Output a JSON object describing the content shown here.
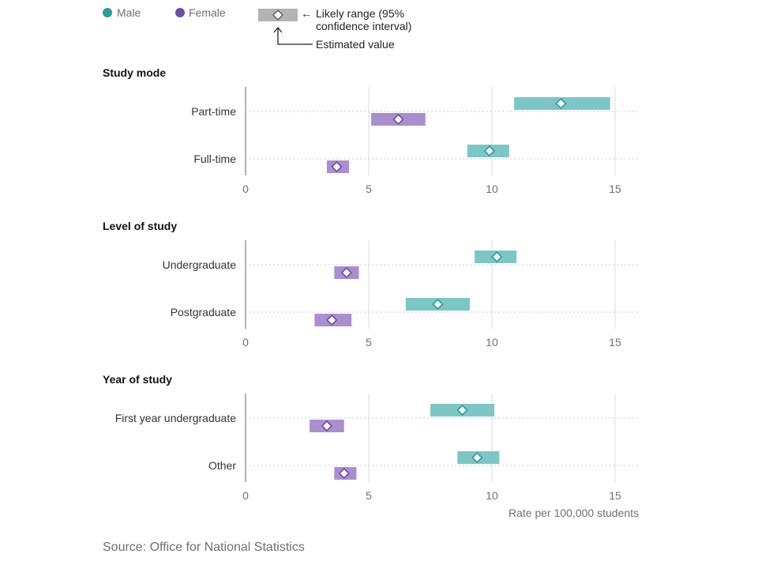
{
  "colors": {
    "male": "#2a9d9a",
    "male_band": "#7cc6c6",
    "female": "#6a4fa8",
    "female_band": "#a98fcf",
    "legend_band": "#b3b3b3",
    "grid": "#dddddd",
    "axis": "#9a9a9a"
  },
  "legend": {
    "male_label": "Male",
    "female_label": "Female",
    "range_label_line1": "Likely range (95%",
    "range_label_line2": "confidence interval)",
    "estimate_label": "Estimated value",
    "arrow_glyph": "←"
  },
  "x_axis_title": "Rate per 100,000 students",
  "source": "Source: Office for National Statistics",
  "chart_data": {
    "type": "range-dot",
    "xlim": [
      0,
      16
    ],
    "xticks": [
      0,
      5,
      10,
      15
    ],
    "series_names": [
      "Male",
      "Female"
    ],
    "panels": [
      {
        "title": "Study mode",
        "rows": [
          {
            "label": "Part-time",
            "male": {
              "estimate": 12.8,
              "low": 10.9,
              "high": 14.8
            },
            "female": {
              "estimate": 6.2,
              "low": 5.1,
              "high": 7.3
            }
          },
          {
            "label": "Full-time",
            "male": {
              "estimate": 9.9,
              "low": 9.0,
              "high": 10.7
            },
            "female": {
              "estimate": 3.7,
              "low": 3.3,
              "high": 4.2
            }
          }
        ]
      },
      {
        "title": "Level of study",
        "rows": [
          {
            "label": "Undergraduate",
            "male": {
              "estimate": 10.2,
              "low": 9.3,
              "high": 11.0
            },
            "female": {
              "estimate": 4.1,
              "low": 3.6,
              "high": 4.6
            }
          },
          {
            "label": "Postgraduate",
            "male": {
              "estimate": 7.8,
              "low": 6.5,
              "high": 9.1
            },
            "female": {
              "estimate": 3.5,
              "low": 2.8,
              "high": 4.3
            }
          }
        ]
      },
      {
        "title": "Year of study",
        "rows": [
          {
            "label": "First year undergraduate",
            "male": {
              "estimate": 8.8,
              "low": 7.5,
              "high": 10.1
            },
            "female": {
              "estimate": 3.3,
              "low": 2.6,
              "high": 4.0
            }
          },
          {
            "label": "Other",
            "male": {
              "estimate": 9.4,
              "low": 8.6,
              "high": 10.3
            },
            "female": {
              "estimate": 4.0,
              "low": 3.6,
              "high": 4.5
            }
          }
        ]
      }
    ]
  }
}
